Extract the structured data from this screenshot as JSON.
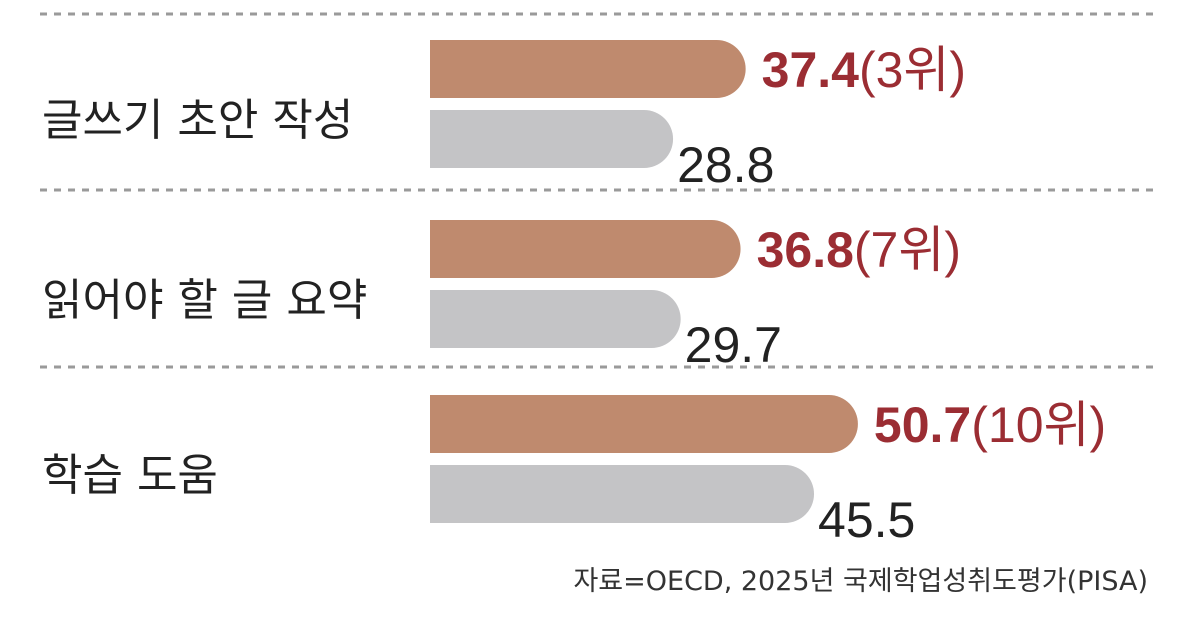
{
  "colors": {
    "primary_bar": "#bf8a6e",
    "secondary_bar": "#c4c4c6",
    "primary_value": "#9b2d33",
    "divider": "#9a9a9a"
  },
  "chart_data": {
    "type": "bar",
    "orientation": "horizontal",
    "categories": [
      "글쓰기 초안 작성",
      "읽어야 할 글 요약",
      "학습 도움"
    ],
    "series": [
      {
        "values": [
          37.4,
          36.8,
          50.7
        ],
        "ranks": [
          "(3위)",
          "(7위)",
          "(10위)"
        ]
      },
      {
        "values": [
          28.8,
          29.7,
          45.5
        ]
      }
    ],
    "value_labels": {
      "primary": [
        "37.4",
        "36.8",
        "50.7"
      ],
      "secondary": [
        "28.8",
        "29.7",
        "45.5"
      ]
    },
    "grid": false,
    "legend": "none"
  },
  "source": "자료=OECD, 2025년 국제학업성취도평가(PISA)"
}
